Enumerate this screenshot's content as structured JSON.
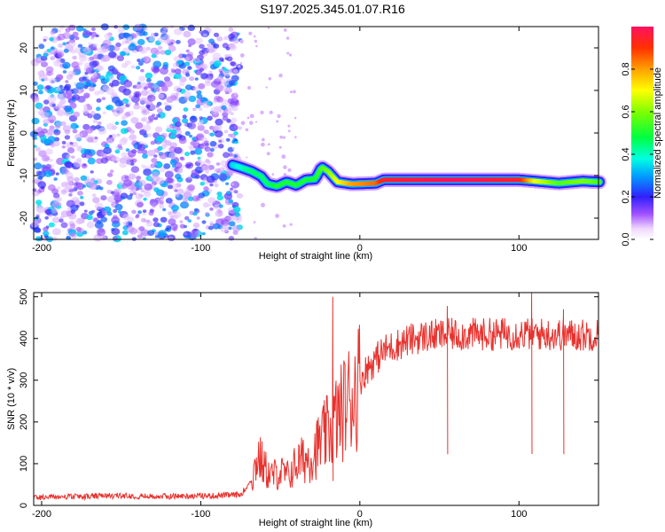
{
  "title": "S197.2025.345.01.07.R16",
  "chart_data": [
    {
      "type": "heatmap",
      "title": "",
      "xlabel": "Height of straight line (km)",
      "ylabel": "Frequency (Hz)",
      "xlim": [
        -205,
        150
      ],
      "ylim": [
        -25,
        25
      ],
      "xticks": [
        -200,
        -100,
        0,
        100
      ],
      "xtick_labels": [
        "-200",
        "-100",
        "0",
        "100"
      ],
      "yticks": [
        -20,
        -10,
        0,
        10,
        20
      ],
      "ytick_labels": [
        "-20",
        "-10",
        "0",
        "10",
        "20"
      ],
      "signal_track": [
        {
          "x": -80,
          "y": -7.5,
          "amp": 0.35
        },
        {
          "x": -74,
          "y": -8.2,
          "amp": 0.4
        },
        {
          "x": -68,
          "y": -9.0,
          "amp": 0.45
        },
        {
          "x": -62,
          "y": -10.2,
          "amp": 0.45
        },
        {
          "x": -58,
          "y": -12.0,
          "amp": 0.45
        },
        {
          "x": -52,
          "y": -12.5,
          "amp": 0.5
        },
        {
          "x": -46,
          "y": -11.5,
          "amp": 0.5
        },
        {
          "x": -40,
          "y": -12.3,
          "amp": 0.5
        },
        {
          "x": -34,
          "y": -11.0,
          "amp": 0.5
        },
        {
          "x": -28,
          "y": -10.8,
          "amp": 0.5
        },
        {
          "x": -24,
          "y": -8.0,
          "amp": 0.55
        },
        {
          "x": -20,
          "y": -9.0,
          "amp": 0.6
        },
        {
          "x": -14,
          "y": -11.5,
          "amp": 0.7
        },
        {
          "x": -5,
          "y": -12.0,
          "amp": 0.8
        },
        {
          "x": 10,
          "y": -11.8,
          "amp": 0.85
        },
        {
          "x": 15,
          "y": -11.0,
          "amp": 0.95
        },
        {
          "x": 60,
          "y": -11.0,
          "amp": 1.0
        },
        {
          "x": 100,
          "y": -11.0,
          "amp": 0.95
        },
        {
          "x": 110,
          "y": -11.3,
          "amp": 0.7
        },
        {
          "x": 125,
          "y": -11.8,
          "amp": 0.55
        },
        {
          "x": 140,
          "y": -11.3,
          "amp": 0.6
        },
        {
          "x": 150,
          "y": -11.5,
          "amp": 0.55
        }
      ],
      "noise_region": {
        "x_from": -205,
        "x_to": -75,
        "amp_range": [
          0,
          0.3
        ]
      },
      "colorbar": {
        "label": "Normalized spectral amplitude",
        "range": [
          0,
          1
        ],
        "ticks": [
          0.0,
          0.2,
          0.4,
          0.6,
          0.8
        ],
        "tick_labels": [
          "0.0",
          "0.2",
          "0.4",
          "0.6",
          "0.8"
        ]
      }
    },
    {
      "type": "line",
      "title": "",
      "xlabel": "Height of straight line (km)",
      "ylabel": "SNR (10 * v/v)",
      "xlim": [
        -205,
        150
      ],
      "ylim": [
        0,
        510
      ],
      "xticks": [
        -200,
        -100,
        0,
        100
      ],
      "xtick_labels": [
        "-200",
        "-100",
        "0",
        "100"
      ],
      "yticks": [
        0,
        100,
        200,
        300,
        400,
        500
      ],
      "ytick_labels": [
        "0",
        "100",
        "200",
        "300",
        "400",
        "500"
      ],
      "line_color": "#e8322e",
      "series": [
        {
          "name": "SNR",
          "x": [
            -205,
            -190,
            -170,
            -150,
            -130,
            -110,
            -90,
            -75,
            -68,
            -64,
            -60,
            -56,
            -50,
            -45,
            -40,
            -35,
            -30,
            -25,
            -20,
            -16,
            -12,
            -8,
            -4,
            0,
            5,
            10,
            15,
            20,
            30,
            40,
            60,
            80,
            100,
            120,
            140,
            150
          ],
          "values": [
            18,
            19,
            20,
            22,
            20,
            21,
            22,
            24,
            60,
            120,
            90,
            70,
            80,
            70,
            100,
            110,
            120,
            150,
            175,
            200,
            220,
            250,
            270,
            300,
            330,
            350,
            370,
            380,
            395,
            405,
            410,
            410,
            412,
            410,
            408,
            410
          ]
        }
      ],
      "spikes": [
        {
          "x": -17,
          "y": 500
        },
        {
          "x": 108,
          "y": 510
        },
        {
          "x": 55,
          "y": 478
        },
        {
          "x": 128,
          "y": 470
        }
      ]
    }
  ]
}
